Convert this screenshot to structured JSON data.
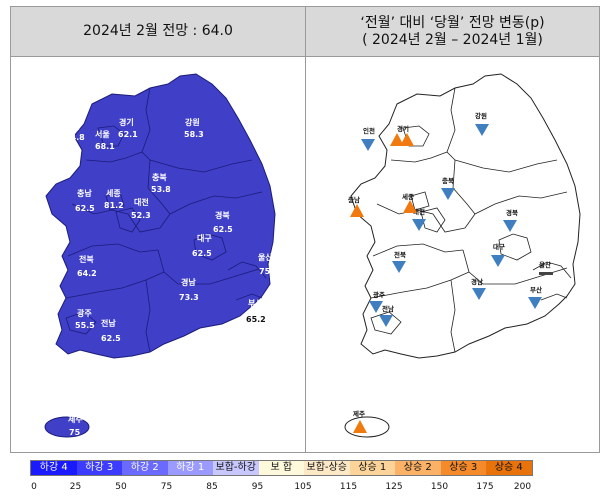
{
  "left_panel": {
    "title": "2024년 2월 전망 : 64.0",
    "regions": [
      {
        "name": "인천",
        "value": "54.8"
      },
      {
        "name": "경기",
        "value": "62.1"
      },
      {
        "name": "서울",
        "value": "68.1"
      },
      {
        "name": "강원",
        "value": "58.3"
      },
      {
        "name": "충북",
        "value": "53.8"
      },
      {
        "name": "충남",
        "value": "62.5"
      },
      {
        "name": "세종",
        "value": "81.2"
      },
      {
        "name": "대전",
        "value": "52.3"
      },
      {
        "name": "경북",
        "value": "62.5"
      },
      {
        "name": "대구",
        "value": "62.5"
      },
      {
        "name": "전북",
        "value": "64.2"
      },
      {
        "name": "울산",
        "value": "75"
      },
      {
        "name": "경남",
        "value": "73.3"
      },
      {
        "name": "부산",
        "value": "65.2"
      },
      {
        "name": "광주",
        "value": "55.5"
      },
      {
        "name": "전남",
        "value": "62.5"
      },
      {
        "name": "제주",
        "value": "75"
      }
    ]
  },
  "right_panel": {
    "title_line1": "‘전월’ 대비 ‘당월’ 전망 변동(p)",
    "title_line2": "( 2024년 2월 – 2024년 1월)",
    "regions": [
      {
        "name": "인천",
        "change": "down"
      },
      {
        "name": "경기",
        "change": "up"
      },
      {
        "name": "강원",
        "change": "down"
      },
      {
        "name": "충북",
        "change": "down"
      },
      {
        "name": "충남",
        "change": "up"
      },
      {
        "name": "세종",
        "change": "up"
      },
      {
        "name": "대전",
        "change": "down"
      },
      {
        "name": "경북",
        "change": "down"
      },
      {
        "name": "전북",
        "change": "down"
      },
      {
        "name": "대구",
        "change": "down"
      },
      {
        "name": "울산",
        "change": "flat"
      },
      {
        "name": "경남",
        "change": "down"
      },
      {
        "name": "부산",
        "change": "down"
      },
      {
        "name": "광주",
        "change": "down"
      },
      {
        "name": "전남",
        "change": "down"
      },
      {
        "name": "제주",
        "change": "up"
      }
    ]
  },
  "colors": {
    "map_fill": "#3f3fc8",
    "down_marker": "#3f7fc0",
    "up_marker": "#f07a10",
    "flat_marker": "#444444"
  },
  "legend": {
    "items": [
      {
        "label": "하강 4",
        "color": "#1a1aff",
        "text_color": "#ffffff"
      },
      {
        "label": "하강 3",
        "color": "#3c3cff",
        "text_color": "#ffffff"
      },
      {
        "label": "하강 2",
        "color": "#6a6aff",
        "text_color": "#ffffff"
      },
      {
        "label": "하강 1",
        "color": "#9a9aff",
        "text_color": "#ffffff"
      },
      {
        "label": "보합-하강",
        "color": "#c8c8ff",
        "text_color": "#111111"
      },
      {
        "label": "보 합",
        "color": "#fff9dc",
        "text_color": "#111111"
      },
      {
        "label": "보합-상승",
        "color": "#fde9c6",
        "text_color": "#111111"
      },
      {
        "label": "상승 1",
        "color": "#fcd49a",
        "text_color": "#111111"
      },
      {
        "label": "상승 2",
        "color": "#fbb266",
        "text_color": "#111111"
      },
      {
        "label": "상승 3",
        "color": "#f48a2a",
        "text_color": "#111111"
      },
      {
        "label": "상승 4",
        "color": "#e8730a",
        "text_color": "#111111"
      }
    ],
    "ticks": [
      "0",
      "25",
      "50",
      "75",
      "85",
      "95",
      "105",
      "115",
      "125",
      "150",
      "175",
      "200"
    ]
  }
}
